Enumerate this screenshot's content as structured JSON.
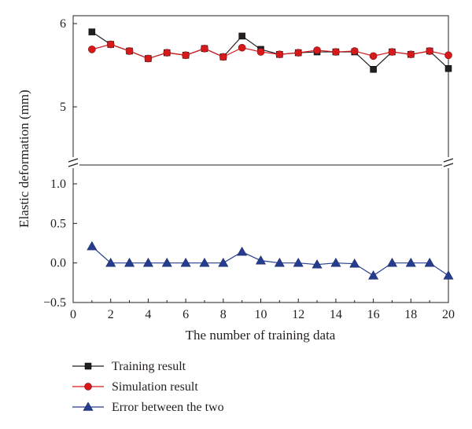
{
  "chart_data": {
    "type": "line",
    "xlabel": "The number of training data",
    "ylabel": "Elastic deformation (mm)",
    "x": [
      1,
      2,
      3,
      4,
      5,
      6,
      7,
      8,
      9,
      10,
      11,
      12,
      13,
      14,
      15,
      16,
      17,
      18,
      19,
      20
    ],
    "xlim": [
      0,
      20
    ],
    "x_ticks": [
      "0",
      "2",
      "4",
      "6",
      "8",
      "10",
      "12",
      "14",
      "16",
      "18",
      "20"
    ],
    "axis_break": "broken y-axis between 1.2 and 4.5",
    "upper_panel": {
      "ylim": [
        4.5,
        6.0
      ],
      "y_ticks": [
        "5",
        "6"
      ]
    },
    "lower_panel": {
      "ylim": [
        -0.5,
        1.2
      ],
      "y_ticks": [
        "−0.5",
        "0.0",
        "0.5",
        "1.0"
      ]
    },
    "series": [
      {
        "name": "Training result",
        "panel": "upper",
        "marker": "square",
        "color": "#231f20",
        "values": [
          5.9,
          5.75,
          5.67,
          5.58,
          5.65,
          5.62,
          5.7,
          5.6,
          5.85,
          5.69,
          5.63,
          5.65,
          5.66,
          5.66,
          5.66,
          5.45,
          5.66,
          5.63,
          5.67,
          5.46
        ]
      },
      {
        "name": "Simulation result",
        "panel": "upper",
        "marker": "circle",
        "color": "#d7191c",
        "values": [
          5.69,
          5.75,
          5.67,
          5.58,
          5.65,
          5.62,
          5.7,
          5.6,
          5.71,
          5.66,
          5.63,
          5.65,
          5.68,
          5.66,
          5.67,
          5.61,
          5.66,
          5.63,
          5.67,
          5.62
        ]
      },
      {
        "name": "Error between the two",
        "panel": "lower",
        "marker": "triangle",
        "color": "#253c8f",
        "values": [
          0.21,
          0.0,
          0.0,
          0.0,
          0.0,
          0.0,
          0.0,
          0.0,
          0.14,
          0.03,
          0.0,
          0.0,
          -0.02,
          0.0,
          -0.01,
          -0.16,
          0.0,
          0.0,
          0.0,
          -0.16
        ]
      }
    ],
    "legend_position": "bottom-left"
  }
}
